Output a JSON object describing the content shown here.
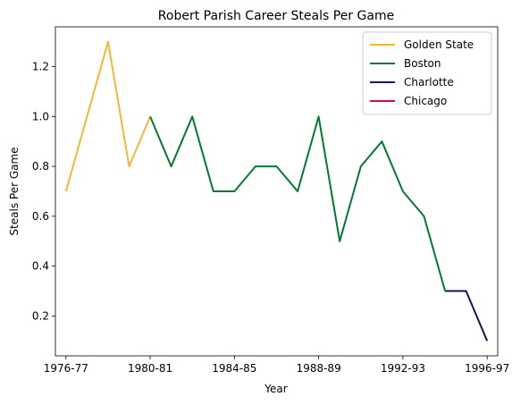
{
  "chart_data": {
    "type": "line",
    "title": "Robert Parish Career Steals Per Game",
    "xlabel": "Year",
    "ylabel": "Steals Per Game",
    "x_tick_labels": [
      {
        "index": 0,
        "label": "1976-77"
      },
      {
        "index": 4,
        "label": "1980-81"
      },
      {
        "index": 8,
        "label": "1984-85"
      },
      {
        "index": 12,
        "label": "1988-89"
      },
      {
        "index": 16,
        "label": "1992-93"
      },
      {
        "index": 20,
        "label": "1996-97"
      }
    ],
    "y_ticks": [
      0.2,
      0.4,
      0.6,
      0.8,
      1.0,
      1.2
    ],
    "y_tick_labels": [
      "0.2",
      "0.4",
      "0.6",
      "0.8",
      "1.0",
      "1.2"
    ],
    "xlim": [
      -0.5,
      20.5
    ],
    "ylim": [
      0.04,
      1.36
    ],
    "grid": false,
    "legend_position": "top-right",
    "series": [
      {
        "name": "Golden State",
        "color": "#f5b731",
        "x": [
          0,
          1,
          2,
          3,
          4
        ],
        "y": [
          0.7,
          1.0,
          1.3,
          0.8,
          1.0
        ]
      },
      {
        "name": "Boston",
        "color": "#007a33",
        "x": [
          4,
          5,
          6,
          7,
          8,
          9,
          10,
          11,
          12,
          13,
          14,
          15,
          16,
          17,
          18
        ],
        "y": [
          1.0,
          0.8,
          1.0,
          0.7,
          0.7,
          0.8,
          0.8,
          0.7,
          1.0,
          0.5,
          0.8,
          0.9,
          0.7,
          0.6,
          0.3
        ]
      },
      {
        "name": "Charlotte",
        "color": "#1d1160",
        "x": [
          18,
          19,
          20
        ],
        "y": [
          0.3,
          0.3,
          0.1
        ]
      },
      {
        "name": "Chicago",
        "color": "#ce1141",
        "x": [
          20
        ],
        "y": [
          0.1
        ]
      }
    ]
  }
}
